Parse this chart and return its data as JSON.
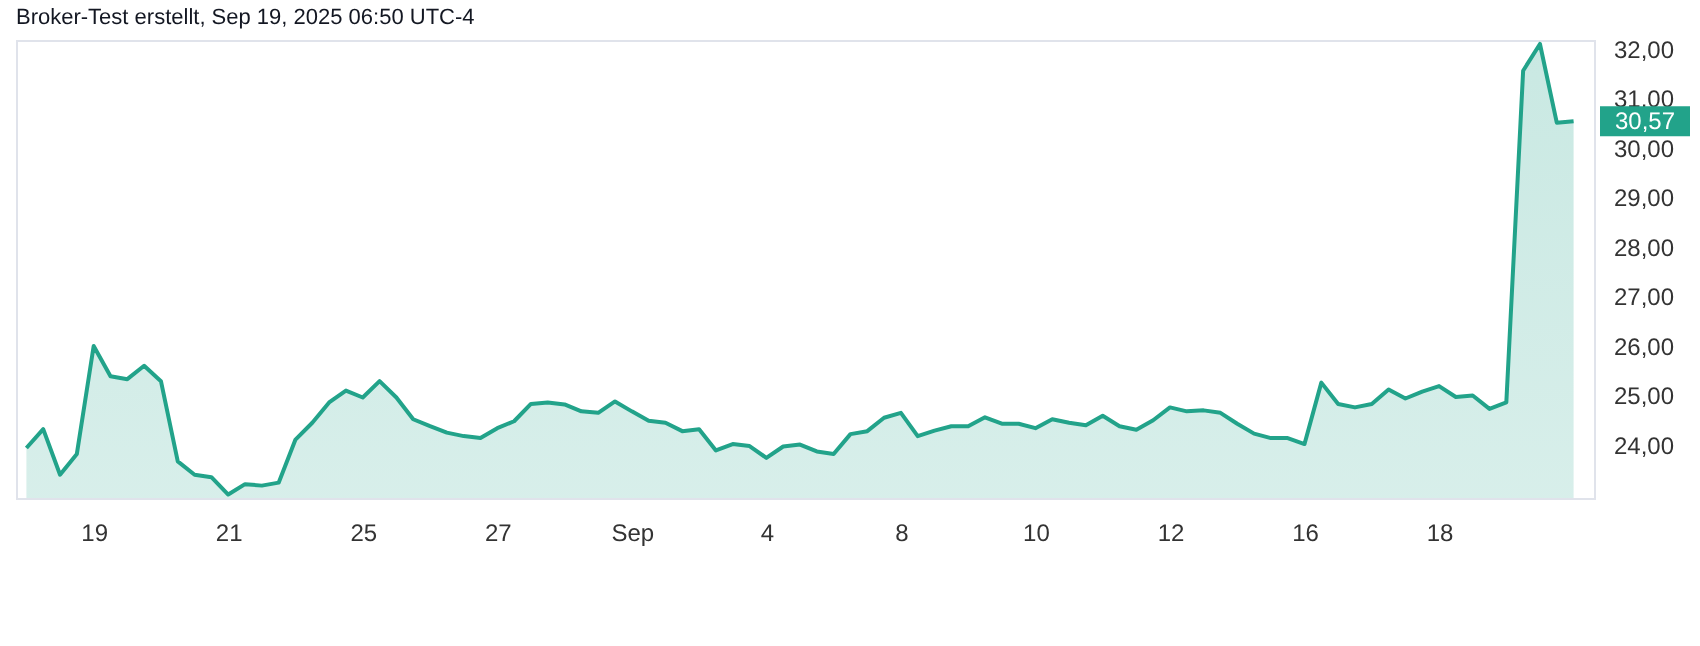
{
  "chart_data": {
    "type": "area",
    "title": "Broker-Test erstellt, Sep 19, 2025 06:50 UTC-4",
    "categories": [
      null,
      null,
      null,
      null,
      "19",
      null,
      null,
      null,
      null,
      null,
      null,
      null,
      "21",
      null,
      null,
      null,
      null,
      null,
      null,
      null,
      "25",
      null,
      null,
      null,
      null,
      null,
      null,
      null,
      "27",
      null,
      null,
      null,
      null,
      null,
      null,
      null,
      "Sep",
      null,
      null,
      null,
      null,
      null,
      null,
      null,
      "4",
      null,
      null,
      null,
      null,
      null,
      null,
      null,
      "8",
      null,
      null,
      null,
      null,
      null,
      null,
      null,
      "10",
      null,
      null,
      null,
      null,
      null,
      null,
      null,
      "12",
      null,
      null,
      null,
      null,
      null,
      null,
      null,
      "16",
      null,
      null,
      null,
      null,
      null,
      null,
      null,
      "18",
      null,
      null,
      null,
      null,
      null,
      null,
      null,
      null
    ],
    "series": [
      {
        "color": "#22a38a",
        "values": [
          23.96,
          24.34,
          23.42,
          23.84,
          26.02,
          25.41,
          25.35,
          25.62,
          25.31,
          23.69,
          23.42,
          23.37,
          23.02,
          23.23,
          23.2,
          23.26,
          24.13,
          24.47,
          24.88,
          25.12,
          24.98,
          25.31,
          24.98,
          24.54,
          24.4,
          24.27,
          24.2,
          24.16,
          24.36,
          24.5,
          24.85,
          24.88,
          24.84,
          24.7,
          24.67,
          24.9,
          24.7,
          24.51,
          24.47,
          24.3,
          24.34,
          23.91,
          24.04,
          24.0,
          23.76,
          23.99,
          24.03,
          23.89,
          23.84,
          24.24,
          24.3,
          24.57,
          24.67,
          24.2,
          24.31,
          24.4,
          24.4,
          24.58,
          24.45,
          24.45,
          24.36,
          24.54,
          24.47,
          24.42,
          24.61,
          24.4,
          24.33,
          24.52,
          24.78,
          24.7,
          24.72,
          24.67,
          24.45,
          24.25,
          24.16,
          24.16,
          24.04,
          25.28,
          24.85,
          24.78,
          24.85,
          25.14,
          24.96,
          25.1,
          25.21,
          24.99,
          25.02,
          24.75,
          24.88,
          31.58,
          32.12,
          30.53,
          30.56
        ]
      }
    ],
    "ylim": [
      22.95,
      32.2
    ],
    "yticks": [
      {
        "value": 24,
        "label": "24,00"
      },
      {
        "value": 25,
        "label": "25,00"
      },
      {
        "value": 26,
        "label": "26,00"
      },
      {
        "value": 27,
        "label": "27,00"
      },
      {
        "value": 28,
        "label": "28,00"
      },
      {
        "value": 29,
        "label": "29,00"
      },
      {
        "value": 30,
        "label": "30,00"
      },
      {
        "value": 31,
        "label": "31,00"
      },
      {
        "value": 32,
        "label": "32,00"
      }
    ],
    "annotations": [
      "30,57"
    ]
  }
}
